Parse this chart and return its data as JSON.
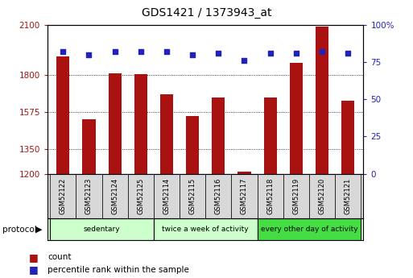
{
  "title": "GDS1421 / 1373943_at",
  "samples": [
    "GSM52122",
    "GSM52123",
    "GSM52124",
    "GSM52125",
    "GSM52114",
    "GSM52115",
    "GSM52116",
    "GSM52117",
    "GSM52118",
    "GSM52119",
    "GSM52120",
    "GSM52121"
  ],
  "counts": [
    1910,
    1530,
    1810,
    1805,
    1680,
    1550,
    1660,
    1215,
    1660,
    1870,
    2090,
    1640
  ],
  "percentiles": [
    82,
    80,
    82,
    82,
    82,
    80,
    81,
    76,
    81,
    81,
    82,
    81
  ],
  "groups": [
    {
      "label": "sedentary",
      "start": 0,
      "end": 4
    },
    {
      "label": "twice a week of activity",
      "start": 4,
      "end": 8
    },
    {
      "label": "every other day of activity",
      "start": 8,
      "end": 12
    }
  ],
  "group_colors": [
    "#ccffcc",
    "#ccffcc",
    "#44dd44"
  ],
  "bar_color": "#aa1111",
  "dot_color": "#2222bb",
  "ylim_left": [
    1200,
    2100
  ],
  "ylim_right": [
    0,
    100
  ],
  "yticks_left": [
    1200,
    1350,
    1575,
    1800,
    2100
  ],
  "yticks_right": [
    0,
    25,
    50,
    75,
    100
  ],
  "ytick_labels_right": [
    "0",
    "25",
    "50",
    "75",
    "100%"
  ],
  "bar_width": 0.5,
  "bg": "#ffffff",
  "legend_count_label": "count",
  "legend_pct_label": "percentile rank within the sample",
  "protocol_label": "protocol"
}
